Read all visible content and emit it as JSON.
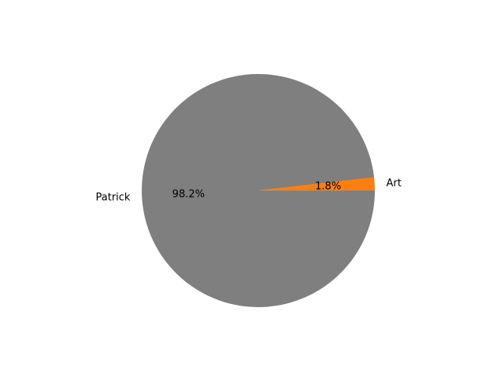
{
  "chart_data": {
    "type": "pie",
    "title": "",
    "slices": [
      {
        "label": "Patrick",
        "value": 98.2,
        "pct_label": "98.2%",
        "color": "#7f7f7f"
      },
      {
        "label": "Art",
        "value": 1.8,
        "pct_label": "1.8%",
        "color": "#ff7f0e"
      }
    ],
    "legend": "none"
  }
}
